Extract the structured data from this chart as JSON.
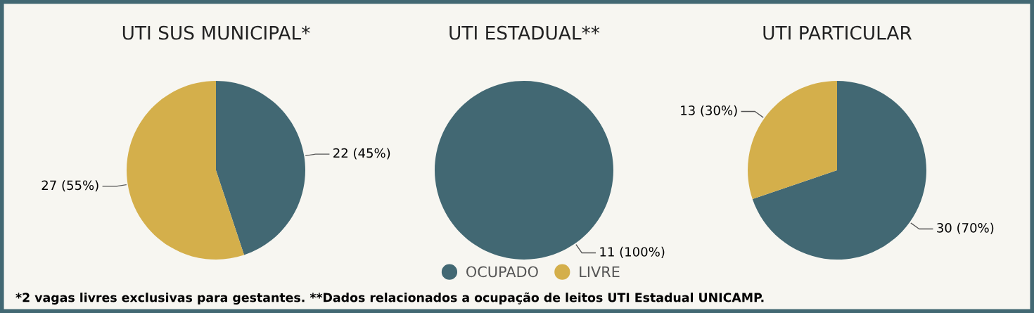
{
  "chart_data": [
    {
      "type": "pie",
      "title": "UTI SUS MUNICIPAL*",
      "categories": [
        null,
        null
      ],
      "values": [
        22,
        27
      ],
      "colors": [
        "#426873",
        "#d4af4b"
      ],
      "value_labels": [
        "22 (45%)",
        "27 (55%)"
      ],
      "annotations": [
        "*2 vagas livres exclusivas para gestantes. **Dados relacionados a ocupação de leitos UTI Estadual UNICAMP."
      ]
    },
    {
      "type": "pie",
      "title": "UTI ESTADUAL**",
      "categories": [
        "OCUPADO",
        "LIVRE"
      ],
      "values": [
        11,
        0
      ],
      "colors": [
        "#426873",
        "#d4af4b"
      ],
      "value_labels": [
        "11 (100%)",
        null
      ],
      "legend": "bottom"
    },
    {
      "type": "pie",
      "title": "UTI PARTICULAR",
      "categories": [
        null,
        null
      ],
      "values": [
        30,
        13
      ],
      "colors": [
        "#426873",
        "#d4af4b"
      ],
      "value_labels": [
        "30 (70%)",
        "13 (30%)"
      ]
    }
  ]
}
